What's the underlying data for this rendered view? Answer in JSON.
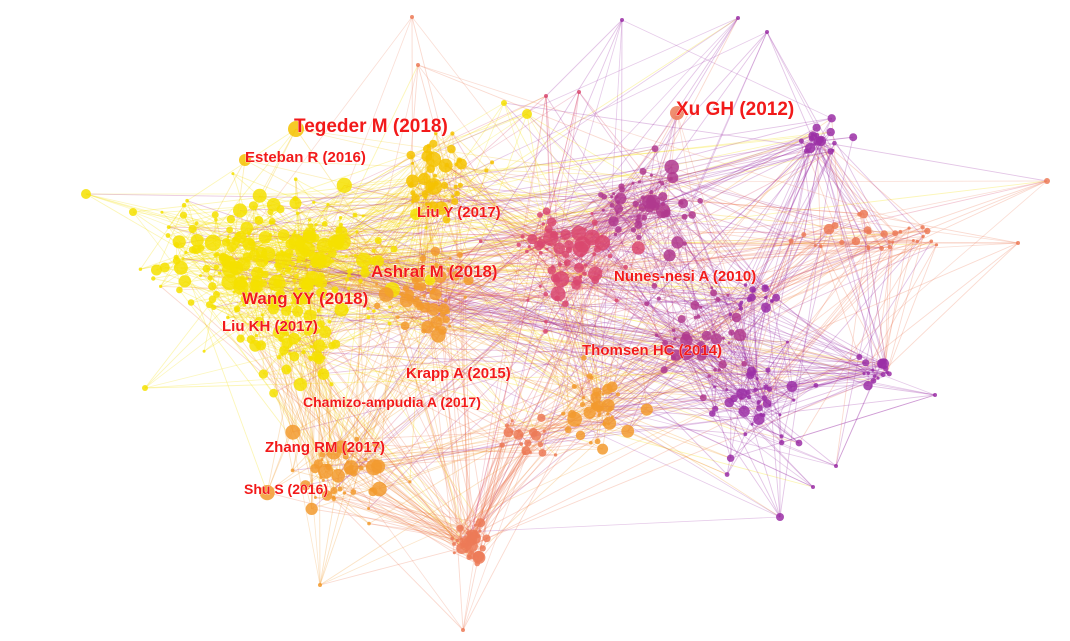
{
  "diagram": {
    "type": "citation-network",
    "colors": {
      "yellow": "#f5e000",
      "yellow_orange": "#f5c200",
      "orange": "#f29a2e",
      "salmon": "#ec7a57",
      "rose": "#d9486e",
      "magenta": "#b03a8e",
      "purple": "#9b2fa6",
      "label": "#f21a1a"
    },
    "labels": [
      {
        "text": "Tegeder M (2018)",
        "size": "large"
      },
      {
        "text": "Xu GH (2012)",
        "size": "large"
      },
      {
        "text": "Esteban R (2016)",
        "size": "medium"
      },
      {
        "text": "Liu Y (2017)",
        "size": "medium"
      },
      {
        "text": "Ashraf M (2018)",
        "size": "large"
      },
      {
        "text": "Nunes-nesi A (2010)",
        "size": "medium"
      },
      {
        "text": "Wang YY (2018)",
        "size": "large"
      },
      {
        "text": "Liu KH (2017)",
        "size": "medium"
      },
      {
        "text": "Thomsen HC (2014)",
        "size": "medium"
      },
      {
        "text": "Krapp A (2015)",
        "size": "medium"
      },
      {
        "text": "Chamizo-ampudia A (2017)",
        "size": "medium"
      },
      {
        "text": "Zhang RM (2017)",
        "size": "medium"
      },
      {
        "text": "Shu S (2016)",
        "size": "medium"
      }
    ]
  }
}
